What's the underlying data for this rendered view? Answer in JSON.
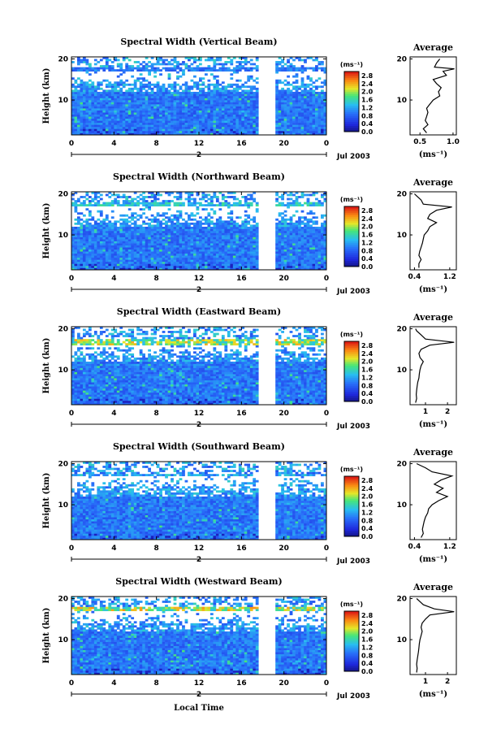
{
  "figure": {
    "date_label": "Jul 2003",
    "day_label": "2",
    "xlabel": "Local Time",
    "ylabel": "Height (km)",
    "unit_label": "(ms⁻¹)",
    "avg_title": "Average",
    "avg_xlabel": "(ms⁻¹)"
  },
  "chart_data": [
    {
      "type": "heatmap",
      "title": "Spectral Width (Vertical Beam)",
      "xlabel": "",
      "ylabel": "Height (km)",
      "xlim": [
        0,
        24
      ],
      "ylim": [
        1.5,
        20.5
      ],
      "xticks": [
        "0",
        "4",
        "8",
        "12",
        "16",
        "20",
        "0"
      ],
      "yticks": [
        "10",
        "20"
      ],
      "colorbar": {
        "ticks": [
          "0.0",
          "0.4",
          "0.8",
          "1.2",
          "1.6",
          "2.0",
          "2.4",
          "2.8"
        ],
        "range": [
          0,
          3.0
        ]
      },
      "data_gap_hours": [
        17.6,
        19.3
      ],
      "high_band_km": [
        17.2,
        18.2
      ],
      "high_band_value": 1.1,
      "average": {
        "xlim": [
          0.35,
          1.05
        ],
        "xticks": [
          "0.5",
          "1.0"
        ],
        "profile": [
          [
            2,
            0.6
          ],
          [
            3,
            0.55
          ],
          [
            4,
            0.62
          ],
          [
            5,
            0.58
          ],
          [
            6,
            0.6
          ],
          [
            7,
            0.62
          ],
          [
            8,
            0.6
          ],
          [
            9,
            0.65
          ],
          [
            10,
            0.7
          ],
          [
            11,
            0.8
          ],
          [
            12,
            0.78
          ],
          [
            13,
            0.82
          ],
          [
            14,
            0.75
          ],
          [
            15,
            0.7
          ],
          [
            16,
            0.9
          ],
          [
            17,
            0.85
          ],
          [
            17.6,
            1.02
          ],
          [
            18,
            0.72
          ],
          [
            19,
            0.75
          ],
          [
            20,
            0.8
          ]
        ]
      }
    },
    {
      "type": "heatmap",
      "title": "Spectral Width (Northward Beam)",
      "xlabel": "",
      "ylabel": "Height (km)",
      "xlim": [
        0,
        24
      ],
      "ylim": [
        1.5,
        20.5
      ],
      "xticks": [
        "0",
        "4",
        "8",
        "12",
        "16",
        "20",
        "0"
      ],
      "yticks": [
        "10",
        "20"
      ],
      "colorbar": {
        "ticks": [
          "0.0",
          "0.4",
          "0.8",
          "1.2",
          "1.6",
          "2.0",
          "2.4",
          "2.8"
        ],
        "range": [
          0,
          3.0
        ]
      },
      "data_gap_hours": [
        17.6,
        19.3
      ],
      "high_band_km": [
        16.8,
        17.8
      ],
      "high_band_value": 1.6,
      "average": {
        "xlim": [
          0.3,
          1.35
        ],
        "xticks": [
          "0.4",
          "1.2"
        ],
        "profile": [
          [
            2,
            0.5
          ],
          [
            3,
            0.5
          ],
          [
            4,
            0.55
          ],
          [
            5,
            0.5
          ],
          [
            6,
            0.52
          ],
          [
            7,
            0.55
          ],
          [
            8,
            0.58
          ],
          [
            9,
            0.6
          ],
          [
            10,
            0.62
          ],
          [
            11,
            0.7
          ],
          [
            12,
            0.75
          ],
          [
            13,
            0.9
          ],
          [
            14,
            0.7
          ],
          [
            15,
            0.75
          ],
          [
            16,
            0.9
          ],
          [
            16.8,
            1.25
          ],
          [
            17.5,
            0.6
          ],
          [
            18.5,
            0.55
          ],
          [
            19.5,
            0.45
          ],
          [
            20,
            0.4
          ]
        ]
      }
    },
    {
      "type": "heatmap",
      "title": "Spectral Width (Eastward Beam)",
      "xlabel": "",
      "ylabel": "Height (km)",
      "xlim": [
        0,
        24
      ],
      "ylim": [
        1.5,
        20.5
      ],
      "xticks": [
        "0",
        "4",
        "8",
        "12",
        "16",
        "20",
        "0"
      ],
      "yticks": [
        "10",
        "20"
      ],
      "colorbar": {
        "ticks": [
          "0.0",
          "0.4",
          "0.8",
          "1.2",
          "1.6",
          "2.0",
          "2.4",
          "2.8"
        ],
        "range": [
          0,
          3.0
        ]
      },
      "data_gap_hours": [
        17.6,
        19.3
      ],
      "high_band_km": [
        16.2,
        17.4
      ],
      "high_band_value": 2.2,
      "average": {
        "xlim": [
          0.3,
          2.4
        ],
        "xticks": [
          "1",
          "2"
        ],
        "profile": [
          [
            2,
            0.55
          ],
          [
            3,
            0.6
          ],
          [
            4,
            0.58
          ],
          [
            5,
            0.6
          ],
          [
            6,
            0.62
          ],
          [
            7,
            0.65
          ],
          [
            8,
            0.7
          ],
          [
            9,
            0.72
          ],
          [
            10,
            0.75
          ],
          [
            11,
            0.8
          ],
          [
            12,
            0.9
          ],
          [
            13,
            0.75
          ],
          [
            14,
            0.7
          ],
          [
            15,
            0.8
          ],
          [
            16,
            1.2
          ],
          [
            16.7,
            2.3
          ],
          [
            17.5,
            1.0
          ],
          [
            18.5,
            0.8
          ],
          [
            19.5,
            0.6
          ],
          [
            20,
            0.55
          ]
        ]
      }
    },
    {
      "type": "heatmap",
      "title": "Spectral Width (Southward Beam)",
      "xlabel": "",
      "ylabel": "Height (km)",
      "xlim": [
        0,
        24
      ],
      "ylim": [
        1.5,
        20.5
      ],
      "xticks": [
        "0",
        "4",
        "8",
        "12",
        "16",
        "20",
        "0"
      ],
      "yticks": [
        "10",
        "20"
      ],
      "colorbar": {
        "ticks": [
          "0.0",
          "0.4",
          "0.8",
          "1.2",
          "1.6",
          "2.0",
          "2.4",
          "2.8"
        ],
        "range": [
          0,
          3.0
        ]
      },
      "data_gap_hours": [
        17.6,
        19.3
      ],
      "high_band_km": [
        16.8,
        17.6
      ],
      "high_band_value": 1.4,
      "average": {
        "xlim": [
          0.3,
          1.35
        ],
        "xticks": [
          "0.4",
          "1.2"
        ],
        "profile": [
          [
            2,
            0.55
          ],
          [
            3,
            0.6
          ],
          [
            4,
            0.58
          ],
          [
            5,
            0.6
          ],
          [
            6,
            0.62
          ],
          [
            7,
            0.65
          ],
          [
            8,
            0.7
          ],
          [
            9,
            0.72
          ],
          [
            10,
            0.8
          ],
          [
            11,
            0.95
          ],
          [
            12,
            1.15
          ],
          [
            13,
            0.9
          ],
          [
            14,
            1.05
          ],
          [
            15,
            0.85
          ],
          [
            16,
            1.0
          ],
          [
            17,
            1.25
          ],
          [
            18,
            0.8
          ],
          [
            19,
            0.65
          ],
          [
            20,
            0.45
          ]
        ]
      }
    },
    {
      "type": "heatmap",
      "title": "Spectral Width (Westward Beam)",
      "xlabel": "Local Time",
      "ylabel": "Height (km)",
      "xlim": [
        0,
        24
      ],
      "ylim": [
        1.5,
        20.5
      ],
      "xticks": [
        "0",
        "4",
        "8",
        "12",
        "16",
        "20",
        "0"
      ],
      "yticks": [
        "10",
        "20"
      ],
      "colorbar": {
        "ticks": [
          "0.0",
          "0.4",
          "0.8",
          "1.2",
          "1.6",
          "2.0",
          "2.4",
          "2.8"
        ],
        "range": [
          0,
          3.0
        ]
      },
      "data_gap_hours": [
        17.6,
        19.3
      ],
      "high_band_km": [
        16.8,
        17.8
      ],
      "high_band_value": 2.3,
      "average": {
        "xlim": [
          0.3,
          2.4
        ],
        "xticks": [
          "1",
          "2"
        ],
        "profile": [
          [
            2,
            0.6
          ],
          [
            3,
            0.62
          ],
          [
            4,
            0.6
          ],
          [
            5,
            0.62
          ],
          [
            6,
            0.65
          ],
          [
            7,
            0.68
          ],
          [
            8,
            0.7
          ],
          [
            9,
            0.72
          ],
          [
            10,
            0.75
          ],
          [
            11,
            0.8
          ],
          [
            12,
            0.85
          ],
          [
            13,
            0.8
          ],
          [
            14,
            0.85
          ],
          [
            15,
            1.0
          ],
          [
            16,
            1.2
          ],
          [
            16.8,
            2.3
          ],
          [
            17.5,
            1.4
          ],
          [
            18.5,
            0.9
          ],
          [
            19.5,
            0.7
          ],
          [
            20,
            0.6
          ]
        ]
      }
    }
  ]
}
